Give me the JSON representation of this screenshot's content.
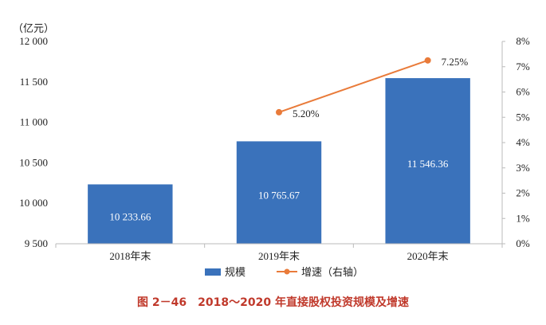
{
  "caption": "图 2－46　2018～2020 年直接股权投资规模及增速",
  "chart_data": {
    "type": "bar",
    "y_unit_label": "（亿元）",
    "categories": [
      "2018年末",
      "2019年末",
      "2020年末"
    ],
    "ylim": [
      9500,
      12000
    ],
    "yticks": [
      9500,
      10000,
      10500,
      11000,
      11500,
      12000
    ],
    "ytick_labels": [
      "9 500",
      "10 000",
      "10 500",
      "11 000",
      "11 500",
      "12 000"
    ],
    "y2lim": [
      0,
      8
    ],
    "y2ticks": [
      0,
      1,
      2,
      3,
      4,
      5,
      6,
      7,
      8
    ],
    "y2tick_labels": [
      "0%",
      "1%",
      "2%",
      "3%",
      "4%",
      "5%",
      "6%",
      "7%",
      "8%"
    ],
    "series": [
      {
        "name": "规模",
        "type": "bar",
        "axis": "left",
        "color": "#3a72bb",
        "values": [
          10233.66,
          10765.67,
          11546.36
        ],
        "labels": [
          "10 233.66",
          "10 765.67",
          "11 546.36"
        ]
      },
      {
        "name": "增速（右轴）",
        "type": "line",
        "axis": "right",
        "color": "#e97b3a",
        "values": [
          null,
          5.2,
          7.25
        ],
        "labels": [
          "",
          "5.20%",
          "7.25%"
        ]
      }
    ],
    "grid": false,
    "legend": "bottom-center"
  }
}
